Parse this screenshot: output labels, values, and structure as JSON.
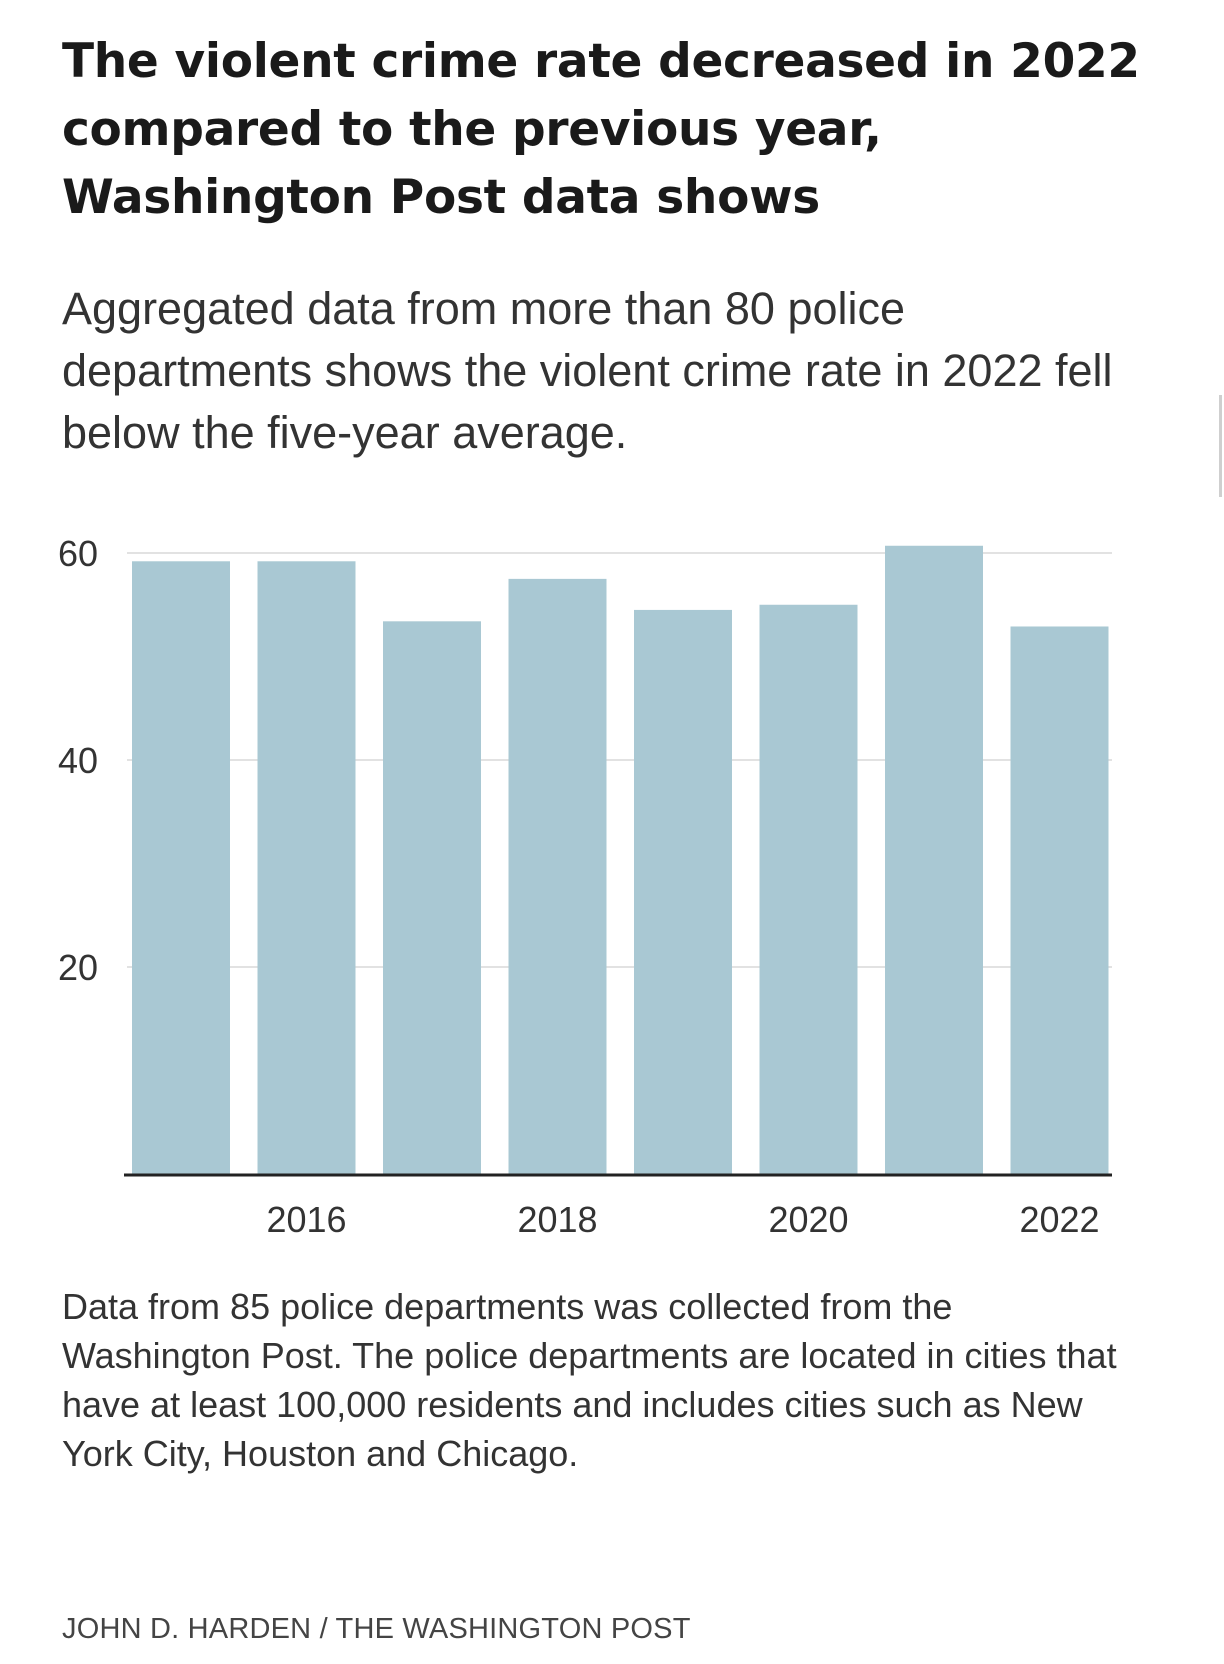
{
  "header": {
    "title": "The violent crime rate decreased in 2022 compared to the previous year, Washington Post data shows",
    "subtitle": "Aggregated data from more than 80 police departments shows the violent crime rate in 2022 fell below the five-year average."
  },
  "footer": {
    "note": "Data from 85 police departments was collected from the Washington Post. The police departments are located in cities that have at least 100,000 residents and includes cities such as New York City, Houston and Chicago.",
    "credit": "JOHN D. HARDEN / THE WASHINGTON POST"
  },
  "colors": {
    "bar": "#a9c8d3",
    "grid": "#e2e2e2",
    "axis": "#222222",
    "tick_text": "#333333"
  },
  "chart_data": {
    "type": "bar",
    "title": "The violent crime rate decreased in 2022 compared to the previous year, Washington Post data shows",
    "subtitle": "Aggregated data from more than 80 police departments shows the violent crime rate in 2022 fell below the five-year average.",
    "xlabel": "",
    "ylabel": "",
    "x": [
      2015,
      2016,
      2017,
      2018,
      2019,
      2020,
      2021,
      2022
    ],
    "values": [
      59.2,
      59.2,
      53.4,
      57.5,
      54.5,
      55.0,
      60.7,
      52.9
    ],
    "ylim": [
      0,
      60
    ],
    "yticks": [
      20,
      40,
      60
    ],
    "xtick_labels": [
      "2016",
      "2018",
      "2020",
      "2022"
    ],
    "xtick_positions": [
      2016,
      2018,
      2020,
      2022
    ],
    "grid": true,
    "legend": "none"
  }
}
